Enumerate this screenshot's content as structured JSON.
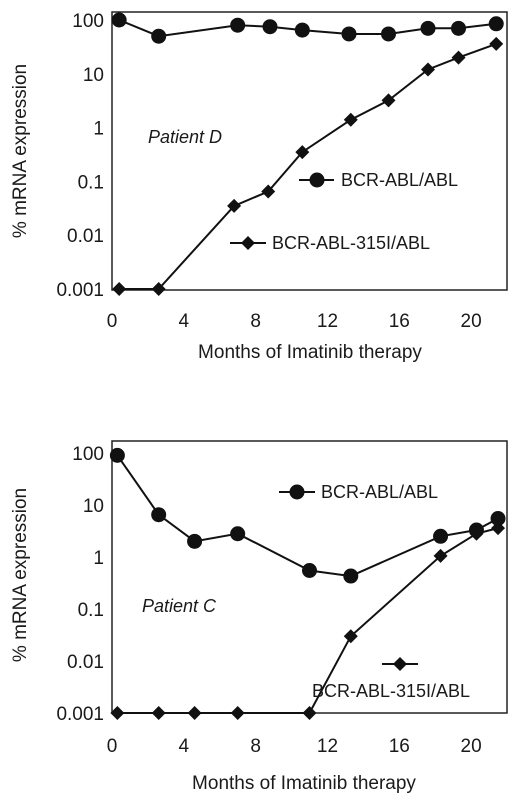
{
  "chart_data": [
    {
      "type": "line",
      "scale": "log",
      "annotation": "Patient D",
      "xlabel": "Months of Imatinib therapy",
      "ylabel": "% mRNA expression",
      "xlim": [
        0,
        22
      ],
      "ylim": [
        0.001,
        100
      ],
      "xticks": [
        "0",
        "4",
        "8",
        "12",
        "16",
        "20"
      ],
      "yticks": [
        "100",
        "10",
        "1",
        "0.1",
        "0.01",
        "0.001"
      ],
      "legend_position": "center-right",
      "series": [
        {
          "name": "BCR-ABL/ABL",
          "marker": "circle",
          "x": [
            0.4,
            2.6,
            7.0,
            8.8,
            10.6,
            13.2,
            15.4,
            17.6,
            19.3,
            21.4
          ],
          "y": [
            100,
            50,
            80,
            75,
            65,
            55,
            55,
            70,
            70,
            85
          ]
        },
        {
          "name": "BCR-ABL-315I/ABL",
          "marker": "diamond",
          "x": [
            0.4,
            2.6,
            6.8,
            8.7,
            10.6,
            13.3,
            15.4,
            17.6,
            19.3,
            21.4
          ],
          "y": [
            0.001,
            0.001,
            0.035,
            0.065,
            0.35,
            1.4,
            3.2,
            12,
            20,
            36
          ]
        }
      ]
    },
    {
      "type": "line",
      "scale": "log",
      "annotation": "Patient C",
      "xlabel": "Months of Imatinib therapy",
      "ylabel": "% mRNA expression",
      "xlim": [
        0,
        22
      ],
      "ylim": [
        0.001,
        100
      ],
      "xticks": [
        "0",
        "4",
        "8",
        "12",
        "16",
        "20"
      ],
      "yticks": [
        "100",
        "10",
        "1",
        "0.1",
        "0.01",
        "0.001"
      ],
      "legend_position": "right",
      "series": [
        {
          "name": "BCR-ABL/ABL",
          "marker": "circle",
          "x": [
            0.3,
            2.6,
            4.6,
            7.0,
            11.0,
            13.3,
            18.3,
            20.3,
            21.5
          ],
          "y": [
            90,
            6.5,
            2,
            2.8,
            0.55,
            0.43,
            2.5,
            3.3,
            5.5
          ]
        },
        {
          "name": "BCR-ABL-315I/ABL",
          "marker": "diamond",
          "x": [
            0.3,
            2.6,
            4.6,
            7.0,
            11.0,
            13.3,
            18.3,
            20.3,
            21.5
          ],
          "y": [
            0.001,
            0.001,
            0.001,
            0.001,
            0.001,
            0.03,
            1.05,
            2.8,
            3.6
          ]
        }
      ]
    }
  ]
}
